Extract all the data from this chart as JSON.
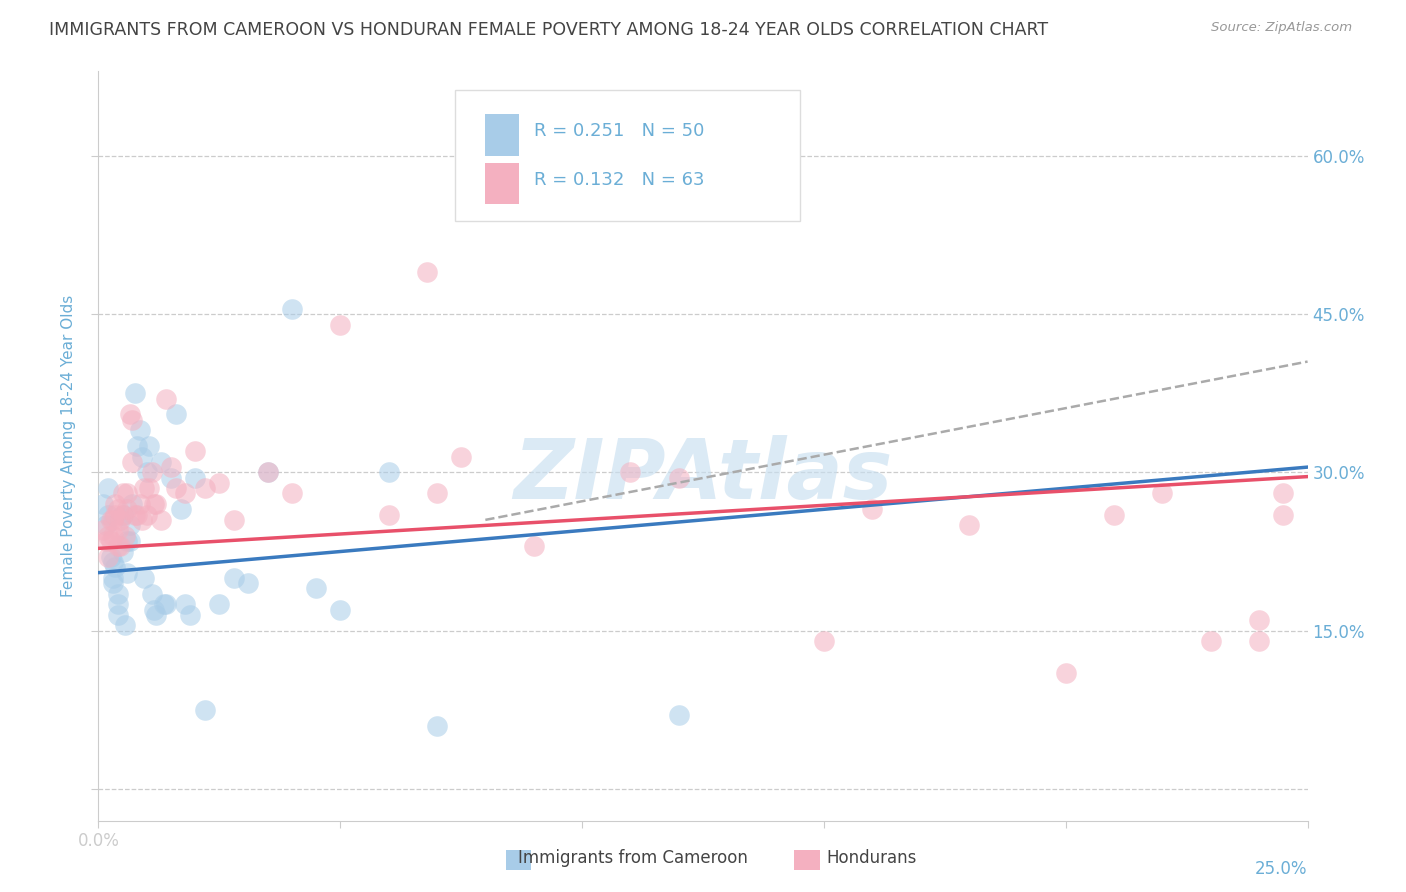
{
  "title": "IMMIGRANTS FROM CAMEROON VS HONDURAN FEMALE POVERTY AMONG 18-24 YEAR OLDS CORRELATION CHART",
  "source": "Source: ZipAtlas.com",
  "ylabel": "Female Poverty Among 18-24 Year Olds",
  "xlim": [
    0.0,
    0.25
  ],
  "ylim": [
    -0.03,
    0.68
  ],
  "yticks": [
    0.0,
    0.15,
    0.3,
    0.45,
    0.6
  ],
  "ytick_labels_right": [
    "",
    "15.0%",
    "30.0%",
    "45.0%",
    "60.0%"
  ],
  "xticks": [
    0.0,
    0.05,
    0.1,
    0.15,
    0.2,
    0.25
  ],
  "blue_color": "#a8cce8",
  "pink_color": "#f4b0c0",
  "blue_line_color": "#3a7abf",
  "pink_line_color": "#e8506a",
  "gray_line_color": "#aaaaaa",
  "axis_tick_color": "#6baed6",
  "grid_color": "#cccccc",
  "title_color": "#444444",
  "watermark_color": "#c8dff0",
  "blue_line": [
    0.0,
    0.205,
    0.25,
    0.305
  ],
  "pink_line": [
    0.0,
    0.228,
    0.25,
    0.296
  ],
  "gray_line": [
    0.08,
    0.255,
    0.25,
    0.405
  ],
  "legend_R1": "R = 0.251",
  "legend_N1": "N = 50",
  "legend_R2": "R = 0.132",
  "legend_N2": "N = 63",
  "legend_label1": "Immigrants from Cameroon",
  "legend_label2": "Hondurans",
  "blue_x": [
    0.001,
    0.0015,
    0.002,
    0.002,
    0.0025,
    0.003,
    0.003,
    0.003,
    0.0035,
    0.004,
    0.004,
    0.004,
    0.005,
    0.005,
    0.0055,
    0.006,
    0.006,
    0.0065,
    0.0065,
    0.007,
    0.0075,
    0.008,
    0.0085,
    0.009,
    0.0095,
    0.01,
    0.0105,
    0.011,
    0.0115,
    0.012,
    0.013,
    0.0135,
    0.014,
    0.015,
    0.016,
    0.017,
    0.018,
    0.019,
    0.02,
    0.022,
    0.025,
    0.028,
    0.031,
    0.035,
    0.04,
    0.045,
    0.05,
    0.06,
    0.07,
    0.12
  ],
  "blue_y": [
    0.27,
    0.25,
    0.285,
    0.26,
    0.22,
    0.215,
    0.2,
    0.195,
    0.21,
    0.175,
    0.165,
    0.185,
    0.26,
    0.225,
    0.155,
    0.235,
    0.205,
    0.25,
    0.235,
    0.27,
    0.375,
    0.325,
    0.34,
    0.315,
    0.2,
    0.3,
    0.325,
    0.185,
    0.17,
    0.165,
    0.31,
    0.175,
    0.175,
    0.295,
    0.355,
    0.265,
    0.175,
    0.165,
    0.295,
    0.075,
    0.175,
    0.2,
    0.195,
    0.3,
    0.455,
    0.19,
    0.17,
    0.3,
    0.06,
    0.07
  ],
  "pink_x": [
    0.001,
    0.0015,
    0.002,
    0.002,
    0.0025,
    0.0025,
    0.003,
    0.003,
    0.0035,
    0.0035,
    0.004,
    0.004,
    0.004,
    0.0045,
    0.0045,
    0.005,
    0.005,
    0.0055,
    0.006,
    0.006,
    0.0065,
    0.007,
    0.007,
    0.0075,
    0.008,
    0.0085,
    0.009,
    0.0095,
    0.01,
    0.0105,
    0.011,
    0.0115,
    0.012,
    0.013,
    0.014,
    0.015,
    0.016,
    0.018,
    0.02,
    0.022,
    0.025,
    0.028,
    0.035,
    0.04,
    0.05,
    0.06,
    0.068,
    0.07,
    0.075,
    0.09,
    0.11,
    0.12,
    0.15,
    0.16,
    0.18,
    0.2,
    0.21,
    0.22,
    0.23,
    0.24,
    0.24,
    0.245,
    0.245
  ],
  "pink_y": [
    0.245,
    0.235,
    0.22,
    0.24,
    0.255,
    0.235,
    0.255,
    0.24,
    0.27,
    0.26,
    0.245,
    0.265,
    0.23,
    0.255,
    0.23,
    0.28,
    0.26,
    0.24,
    0.28,
    0.265,
    0.355,
    0.35,
    0.31,
    0.26,
    0.26,
    0.27,
    0.255,
    0.285,
    0.26,
    0.285,
    0.3,
    0.27,
    0.27,
    0.255,
    0.37,
    0.305,
    0.285,
    0.28,
    0.32,
    0.285,
    0.29,
    0.255,
    0.3,
    0.28,
    0.44,
    0.26,
    0.49,
    0.28,
    0.315,
    0.23,
    0.3,
    0.295,
    0.14,
    0.265,
    0.25,
    0.11,
    0.26,
    0.28,
    0.14,
    0.16,
    0.14,
    0.26,
    0.28
  ]
}
